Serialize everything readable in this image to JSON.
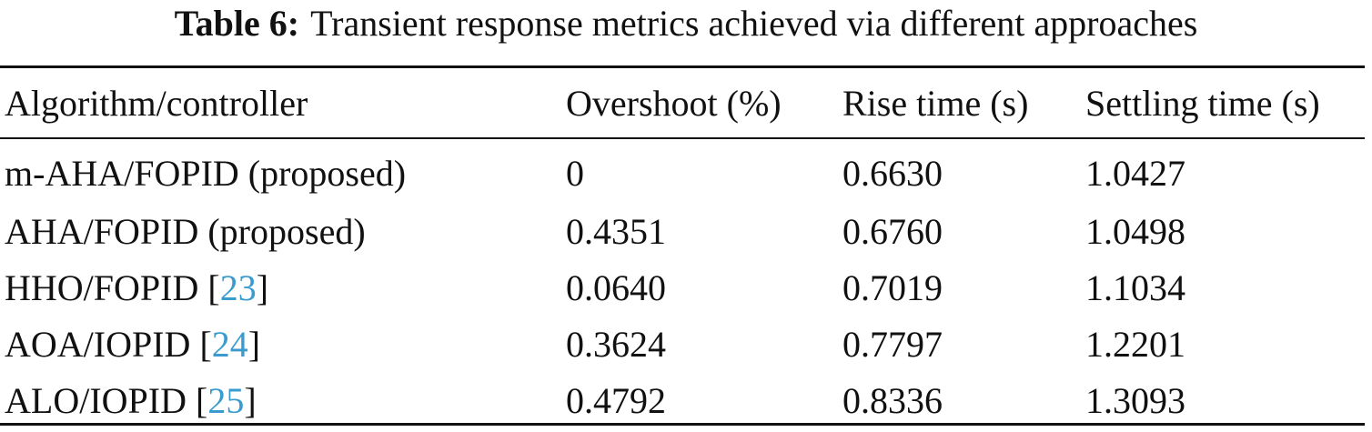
{
  "caption": {
    "label": "Table 6:",
    "text": "Transient response metrics achieved via different approaches"
  },
  "table": {
    "headers": [
      "Algorithm/controller",
      "Overshoot (%)",
      "Rise time (s)",
      "Settling time (s)"
    ],
    "rows": [
      {
        "name": "m-AHA/FOPID (proposed)",
        "ref": "",
        "overshoot": "0",
        "rise_time": "0.6630",
        "settling_time": "1.0427"
      },
      {
        "name": "AHA/FOPID (proposed)",
        "ref": "",
        "overshoot": "0.4351",
        "rise_time": "0.6760",
        "settling_time": "1.0498"
      },
      {
        "name": "HHO/FOPID",
        "ref": "23",
        "overshoot": "0.0640",
        "rise_time": "0.7019",
        "settling_time": "1.1034"
      },
      {
        "name": "AOA/IOPID",
        "ref": "24",
        "overshoot": "0.3624",
        "rise_time": "0.7797",
        "settling_time": "1.2201"
      },
      {
        "name": "ALO/IOPID",
        "ref": "25",
        "overshoot": "0.4792",
        "rise_time": "0.8336",
        "settling_time": "1.3093"
      }
    ]
  },
  "colors": {
    "text": "#111111",
    "reference_link": "#3a9bcf"
  }
}
